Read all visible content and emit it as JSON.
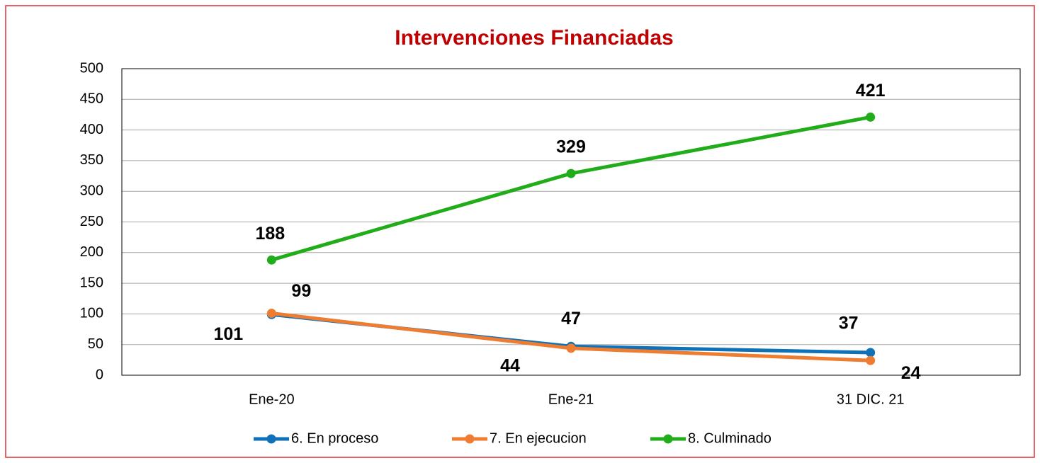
{
  "chart_data": {
    "type": "line",
    "title": "Intervenciones Financiadas",
    "categories": [
      "Ene-20",
      "Ene-21",
      "31 DIC. 21"
    ],
    "series": [
      {
        "name": "6. En proceso",
        "color": "#0f71b8",
        "values": [
          99,
          47,
          37
        ]
      },
      {
        "name": "7. En ejecucion",
        "color": "#ef7d31",
        "values": [
          101,
          44,
          24
        ]
      },
      {
        "name": "8. Culminado",
        "color": "#21ad19",
        "values": [
          188,
          329,
          421
        ]
      }
    ],
    "ylim": [
      0,
      500
    ],
    "yticks": [
      0,
      50,
      100,
      150,
      200,
      250,
      300,
      350,
      400,
      450,
      500
    ],
    "grid": true,
    "legend": "bottom"
  }
}
